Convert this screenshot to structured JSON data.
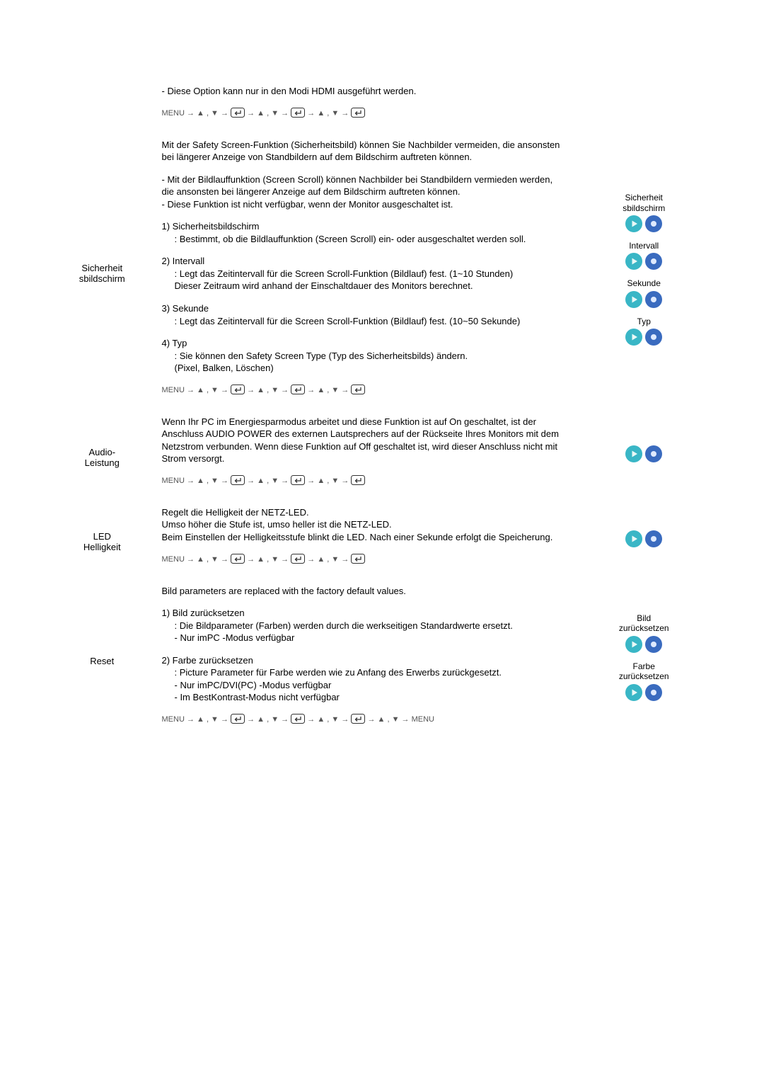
{
  "colors": {
    "text": "#000000",
    "nav_text": "#555555",
    "enter_border": "#333333",
    "play_fill": "#39b6c6",
    "play_inner": "#e9f9f7",
    "adjust_fill": "#3a6bbf",
    "adjust_inner": "#dfeaff"
  },
  "nav_symbols": {
    "menu": "MENU",
    "arrow_right": "→",
    "up": "▲",
    "down": "▼",
    "comma": " , "
  },
  "sections": [
    {
      "label": "",
      "content": [
        {
          "type": "para",
          "text": "- Diese Option kann nur in den Modi HDMI ausgeführt werden."
        },
        {
          "type": "nav",
          "steps": 3
        }
      ],
      "side": []
    },
    {
      "label": "Sicherheit sbildschirm",
      "content": [
        {
          "type": "para",
          "text": "Mit der Safety Screen-Funktion (Sicherheitsbild) können Sie Nachbilder vermeiden, die ansonsten bei längerer Anzeige von Standbildern auf dem Bildschirm auftreten können."
        },
        {
          "type": "para",
          "text": "- Mit der Bildlauffunktion (Screen Scroll) können Nachbilder bei Standbildern vermieden werden, die ansonsten bei längerer Anzeige auf dem Bildschirm auftreten können.\n- Diese Funktion ist nicht verfügbar, wenn der Monitor ausgeschaltet ist."
        },
        {
          "type": "numbered",
          "items": [
            {
              "title": "1) Sicherheitsbildschirm",
              "body": ": Bestimmt, ob die Bildlauffunktion (Screen Scroll) ein- oder ausgeschaltet werden soll."
            },
            {
              "title": "2) Intervall",
              "body": ": Legt das Zeitintervall für die Screen Scroll-Funktion (Bildlauf) fest. (1~10 Stunden)\nDieser Zeitraum wird anhand der Einschaltdauer des Monitors berechnet."
            },
            {
              "title": "3) Sekunde",
              "body": ": Legt das Zeitintervall für die Screen Scroll-Funktion (Bildlauf) fest. (10~50 Sekunde)"
            },
            {
              "title": "4) Typ",
              "body": ": Sie können den Safety Screen Type (Typ des Sicherheitsbilds) ändern.\n(Pixel, Balken, Löschen)"
            }
          ]
        },
        {
          "type": "nav",
          "steps": 3
        }
      ],
      "side": [
        {
          "label": "Sicherheit sbildschirm",
          "icons": [
            "play",
            "adjust"
          ]
        },
        {
          "label": "Intervall",
          "icons": [
            "play",
            "adjust"
          ]
        },
        {
          "label": "Sekunde",
          "icons": [
            "play",
            "adjust"
          ]
        },
        {
          "label": "Typ",
          "icons": [
            "play",
            "adjust"
          ]
        }
      ]
    },
    {
      "label": "Audio-Leistung",
      "content": [
        {
          "type": "para",
          "text": "Wenn Ihr PC im Energiesparmodus arbeitet und diese Funktion ist auf On geschaltet, ist der Anschluss AUDIO POWER des externen Lautsprechers auf der Rückseite Ihres Monitors mit dem Netzstrom verbunden. Wenn diese Funktion auf Off geschaltet ist, wird dieser Anschluss nicht mit Strom versorgt."
        },
        {
          "type": "nav",
          "steps": 3
        }
      ],
      "side": [
        {
          "label": "",
          "icons": [
            "play",
            "adjust"
          ]
        }
      ]
    },
    {
      "label": "LED Helligkeit",
      "content": [
        {
          "type": "para",
          "text": "Regelt die Helligkeit der NETZ-LED.\nUmso höher die Stufe ist, umso heller ist die NETZ-LED.\nBeim Einstellen der Helligkeitsstufe blinkt die LED. Nach einer Sekunde erfolgt die Speicherung."
        },
        {
          "type": "nav",
          "steps": 3
        }
      ],
      "side": [
        {
          "label": "",
          "icons": [
            "play",
            "adjust"
          ]
        }
      ]
    },
    {
      "label": "Reset",
      "content": [
        {
          "type": "para",
          "text": "Bild parameters are replaced with the factory default values."
        },
        {
          "type": "numbered",
          "items": [
            {
              "title": "1) Bild zurücksetzen",
              "body": ": Die Bildparameter (Farben) werden durch die werkseitigen Standardwerte ersetzt.\n- Nur imPC -Modus verfügbar"
            },
            {
              "title": "2) Farbe zurücksetzen",
              "body": ": Picture Parameter für Farbe werden wie zu Anfang des Erwerbs zurückgesetzt.\n- Nur imPC/DVI(PC) -Modus verfügbar\n- Im BestKontrast-Modus nicht verfügbar"
            }
          ]
        },
        {
          "type": "nav",
          "steps": 3,
          "trailing_menu": true
        }
      ],
      "side": [
        {
          "label": "Bild zurücksetzen",
          "icons": [
            "play",
            "adjust"
          ]
        },
        {
          "label": "Farbe zurücksetzen",
          "icons": [
            "play",
            "adjust"
          ]
        }
      ]
    }
  ]
}
